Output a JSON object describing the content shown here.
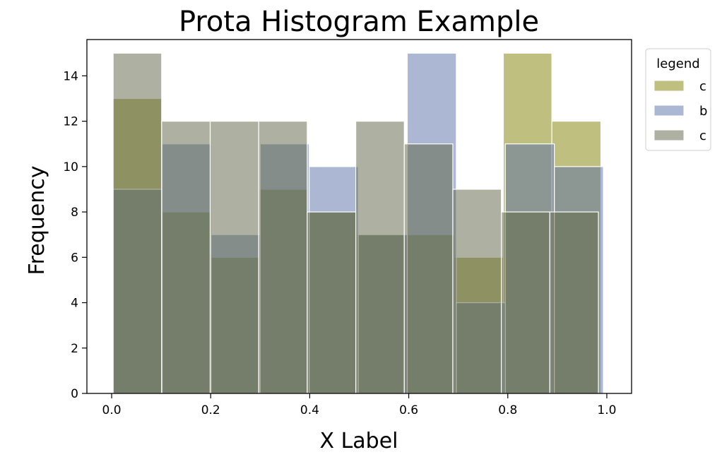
{
  "chart_data": {
    "type": "bar",
    "subtype": "histogram-overlaid",
    "title": "Prota Histogram Example",
    "xlabel": "X Label",
    "ylabel": "Frequency",
    "xlim": [
      -0.05,
      1.05
    ],
    "ylim": [
      0,
      15.6
    ],
    "xticks": [
      "0.0",
      "0.2",
      "0.4",
      "0.6",
      "0.8",
      "1.0"
    ],
    "xtick_values": [
      0.0,
      0.2,
      0.4,
      0.6,
      0.8,
      1.0
    ],
    "yticks": [
      "0",
      "2",
      "4",
      "6",
      "8",
      "10",
      "12",
      "14"
    ],
    "ytick_values": [
      0,
      2,
      4,
      6,
      8,
      10,
      12,
      14
    ],
    "grid": false,
    "legend": {
      "title": "legend",
      "position": "outside-top-right"
    },
    "alpha": 0.5,
    "edgecolor": "#ffffff",
    "series": [
      {
        "name": "c",
        "color": "#808000",
        "bins": [
          {
            "x0": 0.002,
            "x1": 0.101,
            "count": 13
          },
          {
            "x0": 0.101,
            "x1": 0.199,
            "count": 8
          },
          {
            "x0": 0.199,
            "x1": 0.298,
            "count": 6
          },
          {
            "x0": 0.298,
            "x1": 0.396,
            "count": 9
          },
          {
            "x0": 0.396,
            "x1": 0.495,
            "count": 8
          },
          {
            "x0": 0.495,
            "x1": 0.594,
            "count": 7
          },
          {
            "x0": 0.594,
            "x1": 0.692,
            "count": 7
          },
          {
            "x0": 0.692,
            "x1": 0.791,
            "count": 6
          },
          {
            "x0": 0.791,
            "x1": 0.889,
            "count": 15
          },
          {
            "x0": 0.889,
            "x1": 0.988,
            "count": 12
          }
        ]
      },
      {
        "name": "b",
        "color": "#5a6fa8",
        "bins": [
          {
            "x0": 0.003,
            "x1": 0.102,
            "count": 9
          },
          {
            "x0": 0.102,
            "x1": 0.201,
            "count": 11
          },
          {
            "x0": 0.201,
            "x1": 0.3,
            "count": 7
          },
          {
            "x0": 0.3,
            "x1": 0.399,
            "count": 11
          },
          {
            "x0": 0.399,
            "x1": 0.498,
            "count": 10
          },
          {
            "x0": 0.498,
            "x1": 0.597,
            "count": 7
          },
          {
            "x0": 0.597,
            "x1": 0.696,
            "count": 15
          },
          {
            "x0": 0.696,
            "x1": 0.795,
            "count": 4
          },
          {
            "x0": 0.795,
            "x1": 0.894,
            "count": 11
          },
          {
            "x0": 0.894,
            "x1": 0.993,
            "count": 10
          }
        ]
      },
      {
        "name": "c",
        "color": "#5d6344",
        "bins": [
          {
            "x0": 0.003,
            "x1": 0.101,
            "count": 15
          },
          {
            "x0": 0.101,
            "x1": 0.199,
            "count": 12
          },
          {
            "x0": 0.199,
            "x1": 0.297,
            "count": 12
          },
          {
            "x0": 0.297,
            "x1": 0.395,
            "count": 12
          },
          {
            "x0": 0.395,
            "x1": 0.493,
            "count": 8
          },
          {
            "x0": 0.493,
            "x1": 0.591,
            "count": 12
          },
          {
            "x0": 0.591,
            "x1": 0.689,
            "count": 11
          },
          {
            "x0": 0.689,
            "x1": 0.787,
            "count": 9
          },
          {
            "x0": 0.787,
            "x1": 0.885,
            "count": 8
          },
          {
            "x0": 0.885,
            "x1": 0.983,
            "count": 8
          }
        ]
      }
    ]
  }
}
